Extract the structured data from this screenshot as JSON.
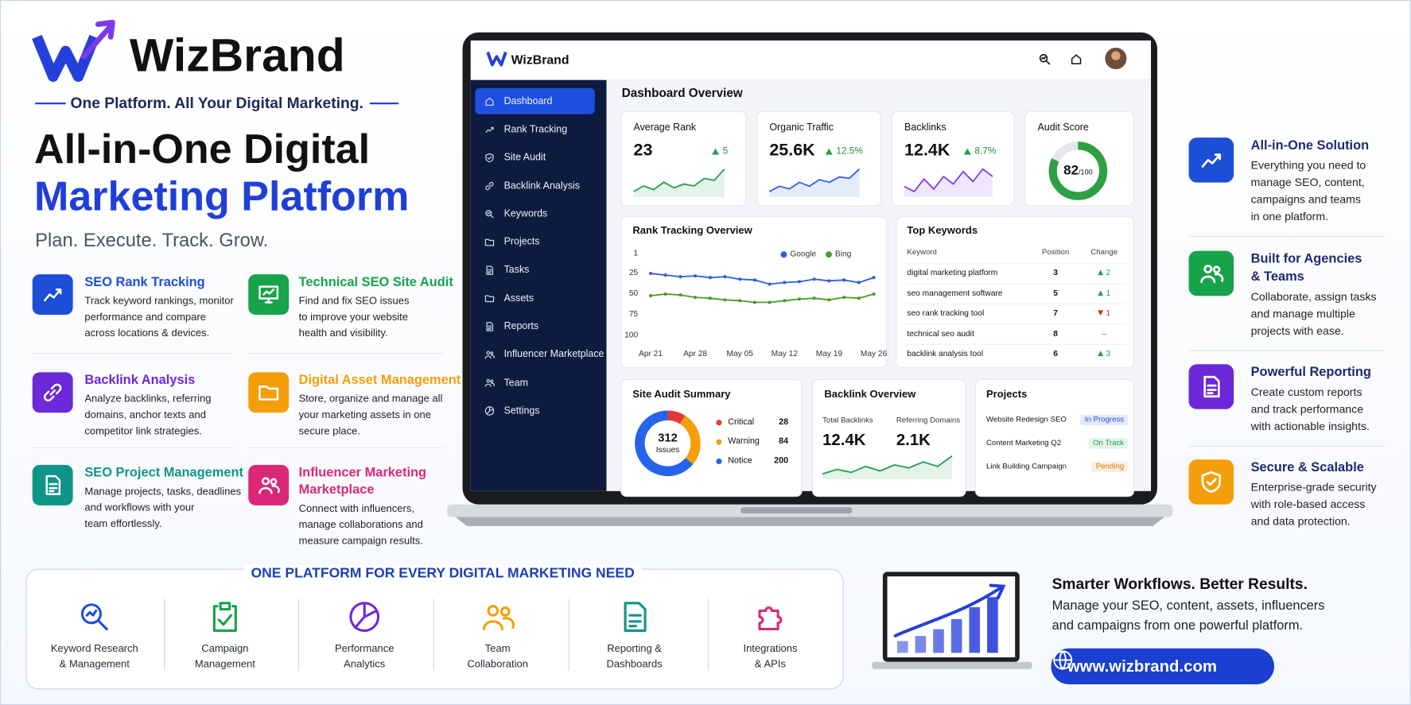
{
  "brand": {
    "name": "WizBrand",
    "tagline": "One Platform. All Your Digital Marketing."
  },
  "hero": {
    "title_line1": "All-in-One Digital",
    "title_line2": "Marketing Platform",
    "subtitle": "Plan. Execute. Track. Grow."
  },
  "features": [
    {
      "title": [
        "SEO Rank Tracking"
      ],
      "description": [
        "Track keyword rankings, monitor",
        "performance and compare",
        "across locations & devices."
      ],
      "color": "#1d4ed8"
    },
    {
      "title": [
        "Technical SEO Site Audit"
      ],
      "description": [
        "Find and fix SEO issues",
        "to improve your website",
        "health and visibility."
      ],
      "color": "#16a34a"
    },
    {
      "title": [
        "Backlink Analysis"
      ],
      "description": [
        "Analyze backlinks, referring",
        "domains, anchor texts and",
        "competitor link strategies."
      ],
      "color": "#6d28d9"
    },
    {
      "title": [
        "Digital Asset Management"
      ],
      "description": [
        "Store, organize and manage all",
        "your marketing assets in one",
        "secure place."
      ],
      "color": "#f59e0b"
    },
    {
      "title": [
        "SEO Project Management"
      ],
      "description": [
        "Manage projects, tasks, deadlines",
        "and workflows with your",
        "team effortlessly."
      ],
      "color": "#0f9488"
    },
    {
      "title": [
        "Influencer Marketing",
        "Marketplace"
      ],
      "description": [
        "Connect with influencers,",
        "manage collaborations and",
        "measure campaign results."
      ],
      "color": "#db2777"
    }
  ],
  "dashboard": {
    "brand": "WizBrand",
    "nav": [
      "Dashboard",
      "Rank Tracking",
      "Site Audit",
      "Backlink Analysis",
      "Keywords",
      "Projects",
      "Tasks",
      "Assets",
      "Reports",
      "Influencer Marketplace",
      "Team",
      "Settings"
    ],
    "heading": "Dashboard Overview",
    "kpis": [
      {
        "label": "Average Rank",
        "value": "23",
        "change": "5",
        "color": "#22a04b",
        "trend": [
          30,
          33,
          31,
          35,
          32,
          34,
          33,
          37,
          36,
          42
        ]
      },
      {
        "label": "Organic Traffic",
        "value": "25.6K",
        "change": "12.5%",
        "color": "#2f5be0",
        "trend": [
          20,
          24,
          22,
          27,
          24,
          29,
          27,
          31,
          30,
          37
        ]
      },
      {
        "label": "Backlinks",
        "value": "12.4K",
        "change": "8.7%",
        "color": "#7c3aed",
        "trend": [
          30,
          28,
          33,
          29,
          34,
          31,
          36,
          32,
          37,
          34
        ]
      }
    ],
    "audit_score": {
      "label": "Audit Score",
      "value": 82,
      "max": {
        "value": 100,
        "label": "/100"
      },
      "color": "#2ea043"
    },
    "rank_chart": {
      "type": "line",
      "title": "Rank Tracking Overview",
      "categories": [
        "Apr 21",
        null,
        null,
        "Apr 28",
        null,
        null,
        "May 05",
        null,
        null,
        "May 12",
        null,
        null,
        "May 19",
        null,
        null,
        "May 26"
      ],
      "series": [
        {
          "name": "Google",
          "color": "#2f5be0",
          "values": [
            25,
            27,
            29,
            28,
            30,
            29,
            32,
            33,
            38,
            36,
            35,
            32,
            34,
            33,
            36,
            30
          ]
        },
        {
          "name": "Bing",
          "color": "#4d9a2a",
          "values": [
            52,
            50,
            51,
            54,
            55,
            57,
            58,
            60,
            60,
            58,
            56,
            55,
            57,
            54,
            55,
            50
          ]
        }
      ],
      "ylim": [
        1,
        100
      ],
      "yticks": [
        1,
        25,
        50,
        75,
        100
      ],
      "y_inverted": true
    },
    "keywords": {
      "title": "Top Keywords",
      "columns": [
        "Keyword",
        "Position",
        "Change"
      ],
      "rows": [
        {
          "keyword": "digital marketing platform",
          "position": 3,
          "change": 2,
          "direction": "up"
        },
        {
          "keyword": "seo management software",
          "position": 5,
          "change": 1,
          "direction": "up"
        },
        {
          "keyword": "seo rank tracking tool",
          "position": 7,
          "change": 1,
          "direction": "down"
        },
        {
          "keyword": "technical seo audit",
          "position": 8,
          "change": "–",
          "direction": null
        },
        {
          "keyword": "backlink analysis tool",
          "position": 6,
          "change": 3,
          "direction": "up"
        }
      ]
    },
    "site_audit": {
      "title": "Site Audit Summary",
      "total": 312,
      "total_label": "Issues",
      "items": [
        {
          "name": "Critical",
          "value": 28,
          "color": "#e53935"
        },
        {
          "name": "Warning",
          "value": 84,
          "color": "#f59e0b"
        },
        {
          "name": "Notice",
          "value": 200,
          "color": "#2563eb"
        }
      ]
    },
    "backlink_overview": {
      "title": "Backlink Overview",
      "metrics": [
        {
          "label": "Total Backlinks",
          "value": "12.4K"
        },
        {
          "label": "Referring Domains",
          "value": "2.1K"
        }
      ],
      "color": "#22a04b",
      "trend": [
        10,
        13,
        11,
        15,
        12,
        16,
        14,
        18,
        15,
        22
      ]
    },
    "projects": {
      "title": "Projects",
      "rows": [
        {
          "name": "Website Redesign SEO",
          "status": "In Progress",
          "status_color": "#1d4ed8"
        },
        {
          "name": "Content Marketing Q2",
          "status": "On Track",
          "status_color": "#16a34a"
        },
        {
          "name": "Link Building Campaign",
          "status": "Pending",
          "status_color": "#d97706"
        }
      ]
    }
  },
  "highlights": [
    {
      "title": [
        "All-in-One Solution"
      ],
      "description": [
        "Everything you need to",
        "manage SEO, content,",
        "campaigns and teams",
        "in one platform."
      ],
      "color": "#1d4ed8"
    },
    {
      "title": [
        "Built for Agencies",
        "& Teams"
      ],
      "description": [
        "Collaborate, assign tasks",
        "and manage multiple",
        "projects with ease."
      ],
      "color": "#16a34a"
    },
    {
      "title": [
        "Powerful Reporting"
      ],
      "description": [
        "Create custom reports",
        "and track performance",
        "with actionable insights."
      ],
      "color": "#6d28d9"
    },
    {
      "title": [
        "Secure & Scalable"
      ],
      "description": [
        "Enterprise-grade security",
        "with role-based access",
        "and data protection."
      ],
      "color": "#f59e0b"
    }
  ],
  "capabilities": {
    "heading": "ONE PLATFORM FOR EVERY DIGITAL MARKETING NEED",
    "items": [
      {
        "label": [
          "Keyword Research",
          "& Management"
        ],
        "color": "#1d4ed8"
      },
      {
        "label": [
          "Campaign",
          "Management"
        ],
        "color": "#16a34a"
      },
      {
        "label": [
          "Performance",
          "Analytics"
        ],
        "color": "#6d28d9"
      },
      {
        "label": [
          "Team",
          "Collaboration"
        ],
        "color": "#f59e0b"
      },
      {
        "label": [
          "Reporting &",
          "Dashboards"
        ],
        "color": "#0f9488"
      },
      {
        "label": [
          "Integrations",
          "& APIs"
        ],
        "color": "#db2777"
      }
    ]
  },
  "promo": {
    "title": "Smarter Workflows. Better Results.",
    "text": [
      "Manage your SEO, content, assets, influencers",
      "and campaigns from one powerful platform."
    ],
    "url": "www.wizbrand.com",
    "growth_bars": [
      14,
      20,
      28,
      40,
      54,
      66
    ],
    "color": "#3b4fe0"
  }
}
